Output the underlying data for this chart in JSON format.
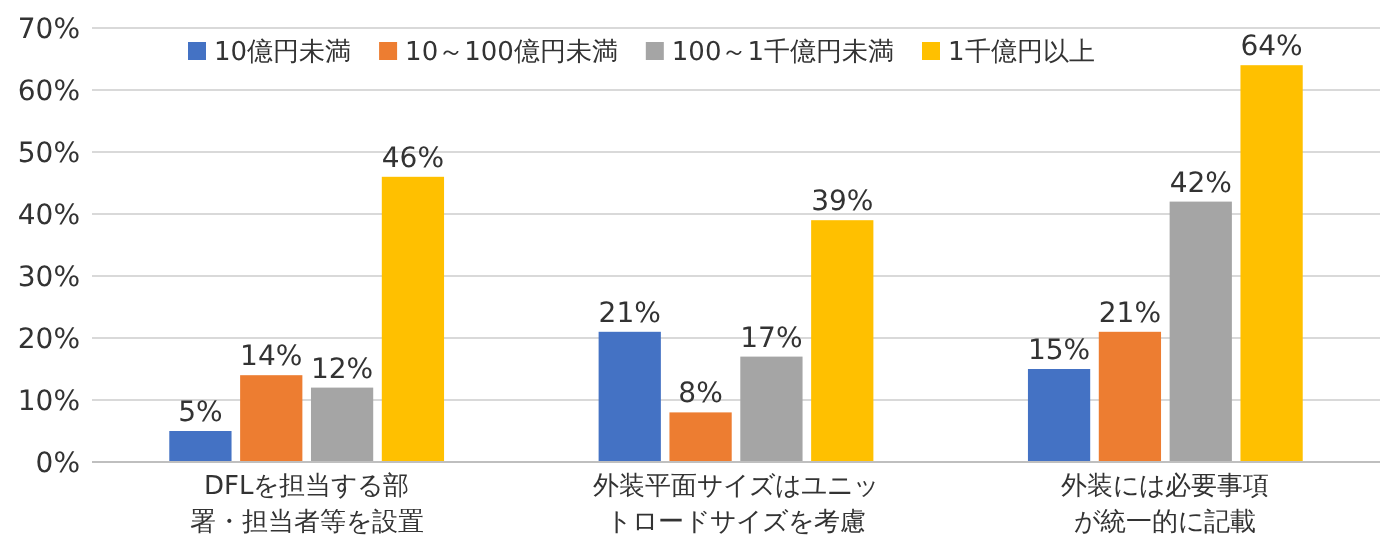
{
  "chart_data": {
    "type": "bar",
    "categories": [
      "DFLを担当する部署・担当者等を設置",
      "外装平面サイズはユニットロードサイズを考慮",
      "外装には必要事項が統一的に記載"
    ],
    "series": [
      {
        "name": "10億円未満",
        "color": "#4472c4",
        "values": [
          5,
          21,
          15
        ],
        "value_labels": [
          "5%",
          "21%",
          "15%"
        ]
      },
      {
        "name": "10～100億円未満",
        "color": "#ed7d31",
        "values": [
          14,
          8,
          21
        ],
        "value_labels": [
          "14%",
          "8%",
          "21%"
        ]
      },
      {
        "name": "100～1千億円未満",
        "color": "#a5a5a5",
        "values": [
          12,
          17,
          42
        ],
        "value_labels": [
          "12%",
          "17%",
          "42%"
        ]
      },
      {
        "name": "1千億円以上",
        "color": "#ffc000",
        "values": [
          46,
          39,
          64
        ],
        "value_labels": [
          "46%",
          "39%",
          "64%"
        ]
      }
    ],
    "ylim": [
      0,
      70
    ],
    "yticks": [
      {
        "value": 0,
        "label": "0%"
      },
      {
        "value": 10,
        "label": "10%"
      },
      {
        "value": 20,
        "label": "20%"
      },
      {
        "value": 30,
        "label": "30%"
      },
      {
        "value": 40,
        "label": "40%"
      },
      {
        "value": 50,
        "label": "50%"
      },
      {
        "value": 60,
        "label": "60%"
      },
      {
        "value": 70,
        "label": "70%"
      }
    ],
    "grid": "y",
    "legend": "top left"
  }
}
